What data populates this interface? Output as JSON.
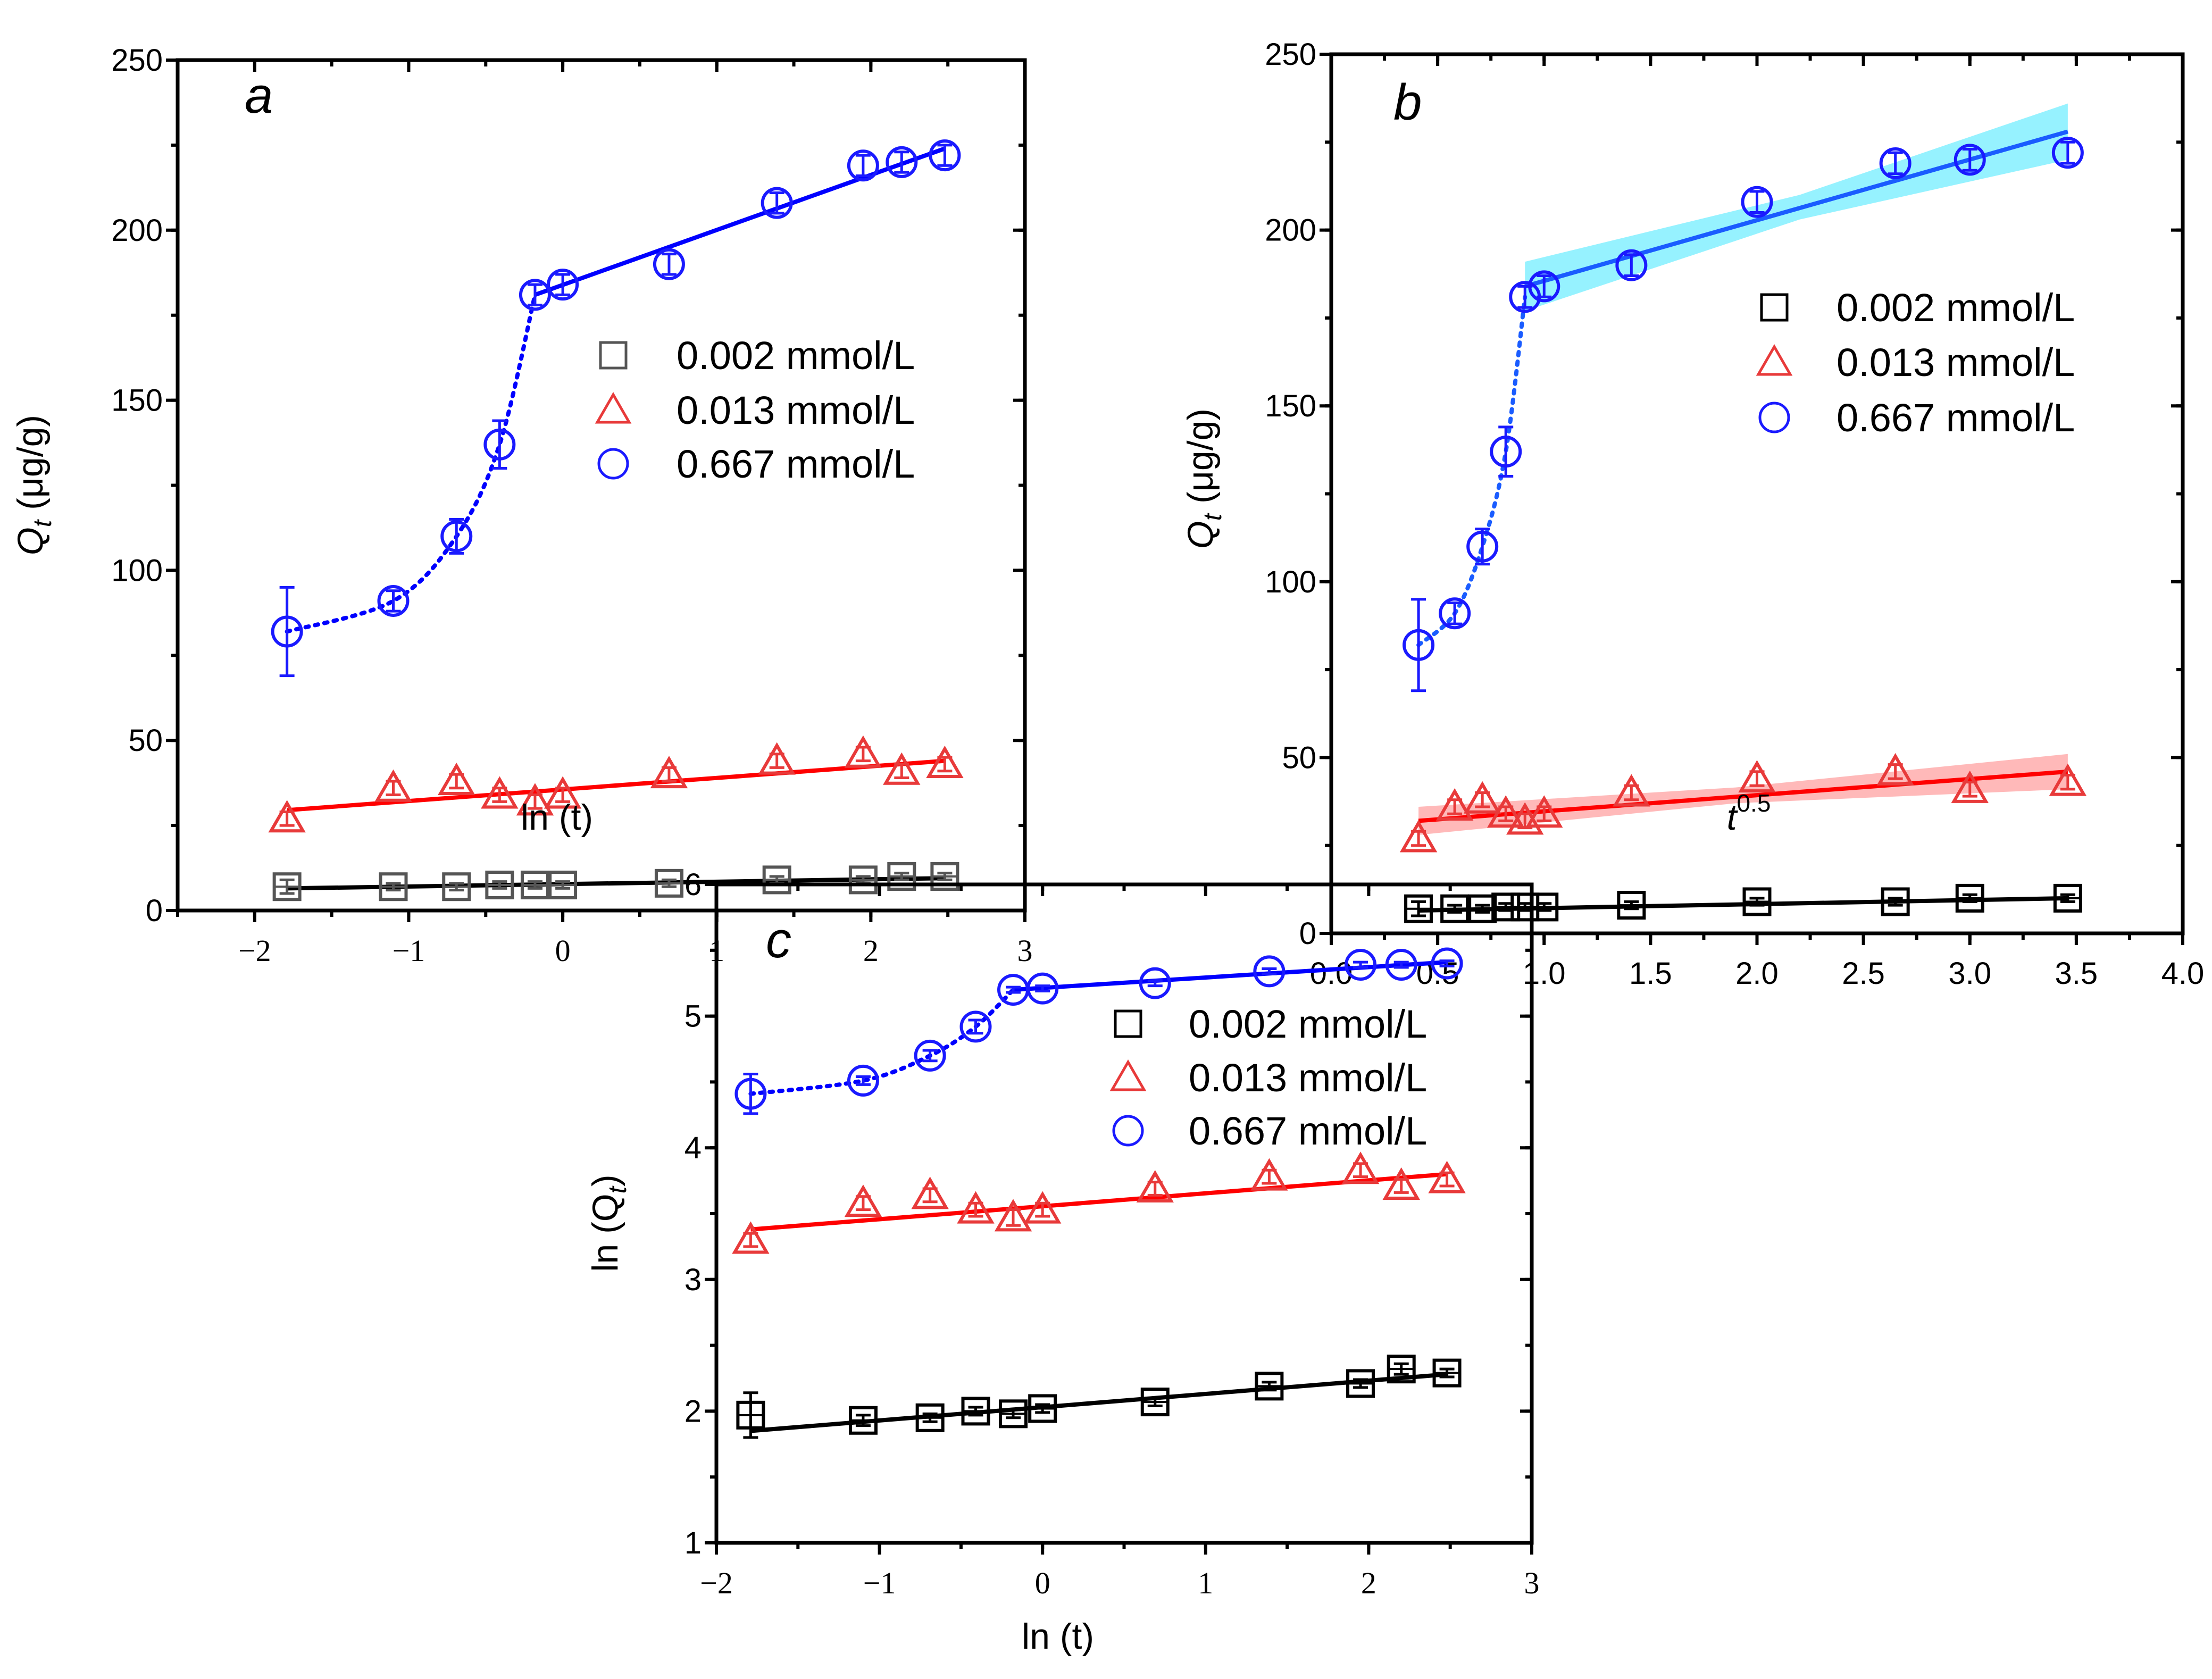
{
  "chart_data": [
    {
      "type": "scatter",
      "panel_label": "a",
      "xlabel": {
        "main": "ln (t)"
      },
      "ylabel": {
        "main": "Q",
        "sub": "t",
        "rest": " (μg/g)"
      },
      "xlim": [
        -2.5,
        3
      ],
      "ylim": [
        0,
        250
      ],
      "xticks": [
        -2,
        -1,
        0,
        1,
        2,
        3
      ],
      "xtick_labels": [
        "−2",
        "−1",
        "0",
        "1",
        "2",
        "3"
      ],
      "yticks": [
        0,
        50,
        100,
        150,
        200,
        250
      ],
      "ytick_labels": [
        "0",
        "50",
        "100",
        "150",
        "200",
        "250"
      ],
      "x": [
        -1.79,
        -1.1,
        -0.69,
        -0.41,
        -0.18,
        0,
        0.69,
        1.39,
        1.95,
        2.2,
        2.48
      ],
      "series": [
        {
          "name": "0.002 mmol/L",
          "marker": "square",
          "color": "#555555",
          "line_color": "#000000",
          "values": [
            7,
            7,
            7,
            7.5,
            7.5,
            7.5,
            8,
            9,
            9,
            10,
            10
          ],
          "err": [
            2,
            1,
            1,
            1,
            1,
            1,
            1,
            1,
            1,
            1,
            1
          ],
          "fit": {
            "x": [
              -1.79,
              2.48
            ],
            "y": [
              6.5,
              9.5
            ]
          }
        },
        {
          "name": "0.013 mmol/L",
          "marker": "triangle",
          "color": "#e83a3a",
          "line_color": "#ff0000",
          "values": [
            27,
            36,
            38,
            34,
            32,
            34,
            40,
            44,
            46,
            41,
            43
          ],
          "err": [
            2,
            2,
            2,
            2,
            2,
            2,
            2,
            2,
            2,
            2,
            2
          ],
          "fit": {
            "x": [
              -1.79,
              2.48
            ],
            "y": [
              29.5,
              44
            ]
          }
        },
        {
          "name": "0.667 mmol/L",
          "marker": "circle",
          "color": "#1a1aff",
          "line_color": "#0000ff",
          "values": [
            82,
            91,
            110,
            137,
            181,
            184,
            190,
            208,
            219,
            220,
            222
          ],
          "err": [
            13,
            3,
            5,
            7,
            3,
            3,
            3,
            3,
            3,
            3,
            3
          ],
          "fit": {
            "x": [
              -0.18,
              2.48
            ],
            "y": [
              181,
              224
            ]
          },
          "dotted_through": 5
        }
      ],
      "legend": "center-right"
    },
    {
      "type": "scatter",
      "panel_label": "b",
      "xlabel": {
        "main": "t",
        "sup": "0.5"
      },
      "ylabel": {
        "main": "Q",
        "sub": "t",
        "rest": " (μg/g)"
      },
      "xlim": [
        0,
        4
      ],
      "ylim": [
        0,
        250
      ],
      "xticks": [
        0,
        0.5,
        1,
        1.5,
        2,
        2.5,
        3,
        3.5,
        4
      ],
      "xtick_labels": [
        "0.0",
        "0.5",
        "1.0",
        "1.5",
        "2.0",
        "2.5",
        "3.0",
        "3.5",
        "4.0"
      ],
      "yticks": [
        0,
        50,
        100,
        150,
        200,
        250
      ],
      "ytick_labels": [
        "0",
        "50",
        "100",
        "150",
        "200",
        "250"
      ],
      "x": [
        0.41,
        0.58,
        0.71,
        0.82,
        0.91,
        1.0,
        1.41,
        2.0,
        2.65,
        3.0,
        3.46
      ],
      "series": [
        {
          "name": "0.002 mmol/L",
          "marker": "square",
          "color": "#000000",
          "line_color": "#000000",
          "values": [
            7,
            7,
            7,
            7.5,
            7.5,
            7.5,
            8,
            9,
            9,
            10,
            10
          ],
          "err": [
            2,
            1,
            1,
            1,
            1,
            1,
            1,
            1,
            1,
            1,
            1
          ],
          "fit": {
            "x": [
              0.41,
              3.46
            ],
            "y": [
              6.5,
              10
            ]
          }
        },
        {
          "name": "0.013 mmol/L",
          "marker": "triangle",
          "color": "#e83a3a",
          "line_color": "#ff0000",
          "values": [
            27,
            36,
            38,
            34,
            32,
            34,
            40,
            44,
            46,
            41,
            43
          ],
          "err": [
            2,
            2,
            2,
            2,
            2,
            2,
            2,
            2,
            2,
            2,
            2
          ],
          "fit": {
            "x": [
              0.41,
              3.46
            ],
            "y": [
              32,
              46
            ]
          },
          "band": {
            "x": [
              0.41,
              1.9,
              3.46
            ],
            "lower": [
              28,
              37,
              41
            ],
            "upper": [
              36,
              41.5,
              51
            ],
            "color": "#ff8080"
          }
        },
        {
          "name": "0.667 mmol/L",
          "marker": "circle",
          "color": "#1a1aff",
          "line_color": "#1a5cff",
          "values": [
            82,
            91,
            110,
            137,
            181,
            184,
            190,
            208,
            219,
            220,
            222
          ],
          "err": [
            13,
            3,
            5,
            7,
            3,
            3,
            3,
            3,
            3,
            3,
            3
          ],
          "fit": {
            "x": [
              0.91,
              3.46
            ],
            "y": [
              184,
              228
            ]
          },
          "dotted_through": 5,
          "band": {
            "x": [
              0.91,
              2.2,
              3.46
            ],
            "lower": [
              177,
              203,
              220
            ],
            "upper": [
              191,
              210,
              236
            ],
            "color": "#40e8ff"
          }
        }
      ],
      "legend": "center-right"
    },
    {
      "type": "scatter",
      "panel_label": "c",
      "xlabel": {
        "main": "ln (t)"
      },
      "ylabel": {
        "main": "ln (Q",
        "sub": "t",
        "rest": ")"
      },
      "xlim": [
        -2,
        3
      ],
      "ylim": [
        1,
        6
      ],
      "xticks": [
        -2,
        -1,
        0,
        1,
        2,
        3
      ],
      "xtick_labels": [
        "−2",
        "−1",
        "0",
        "1",
        "2",
        "3"
      ],
      "yticks": [
        1,
        2,
        3,
        4,
        5,
        6
      ],
      "ytick_labels": [
        "1",
        "2",
        "3",
        "4",
        "5",
        "6"
      ],
      "x": [
        -1.79,
        -1.1,
        -0.69,
        -0.41,
        -0.18,
        0,
        0.69,
        1.39,
        1.95,
        2.2,
        2.48
      ],
      "series": [
        {
          "name": "0.002 mmol/L",
          "marker": "square",
          "color": "#000000",
          "line_color": "#000000",
          "values": [
            1.97,
            1.93,
            1.95,
            2.0,
            1.98,
            2.02,
            2.07,
            2.19,
            2.21,
            2.32,
            2.29
          ],
          "err": [
            0.17,
            0.04,
            0.03,
            0.03,
            0.03,
            0.03,
            0.03,
            0.03,
            0.03,
            0.04,
            0.03
          ],
          "fit": {
            "x": [
              -1.79,
              2.48
            ],
            "y": [
              1.85,
              2.28
            ]
          }
        },
        {
          "name": "0.013 mmol/L",
          "marker": "triangle",
          "color": "#e83a3a",
          "line_color": "#ff0000",
          "values": [
            3.3,
            3.58,
            3.64,
            3.53,
            3.47,
            3.53,
            3.69,
            3.78,
            3.83,
            3.71,
            3.76
          ],
          "err": [
            0.05,
            0.05,
            0.05,
            0.05,
            0.06,
            0.05,
            0.05,
            0.05,
            0.05,
            0.05,
            0.05
          ],
          "fit": {
            "x": [
              -1.79,
              2.48
            ],
            "y": [
              3.38,
              3.8
            ]
          }
        },
        {
          "name": "0.667 mmol/L",
          "marker": "circle",
          "color": "#1a1aff",
          "line_color": "#0000ff",
          "values": [
            4.41,
            4.51,
            4.7,
            4.92,
            5.2,
            5.21,
            5.25,
            5.34,
            5.39,
            5.39,
            5.4
          ],
          "err": [
            0.15,
            0.03,
            0.04,
            0.05,
            0.02,
            0.02,
            0.02,
            0.02,
            0.02,
            0.02,
            0.02
          ],
          "fit": {
            "x": [
              -0.18,
              2.48
            ],
            "y": [
              5.2,
              5.41
            ]
          },
          "dotted_through": 5
        }
      ],
      "legend": "upper-right"
    }
  ]
}
